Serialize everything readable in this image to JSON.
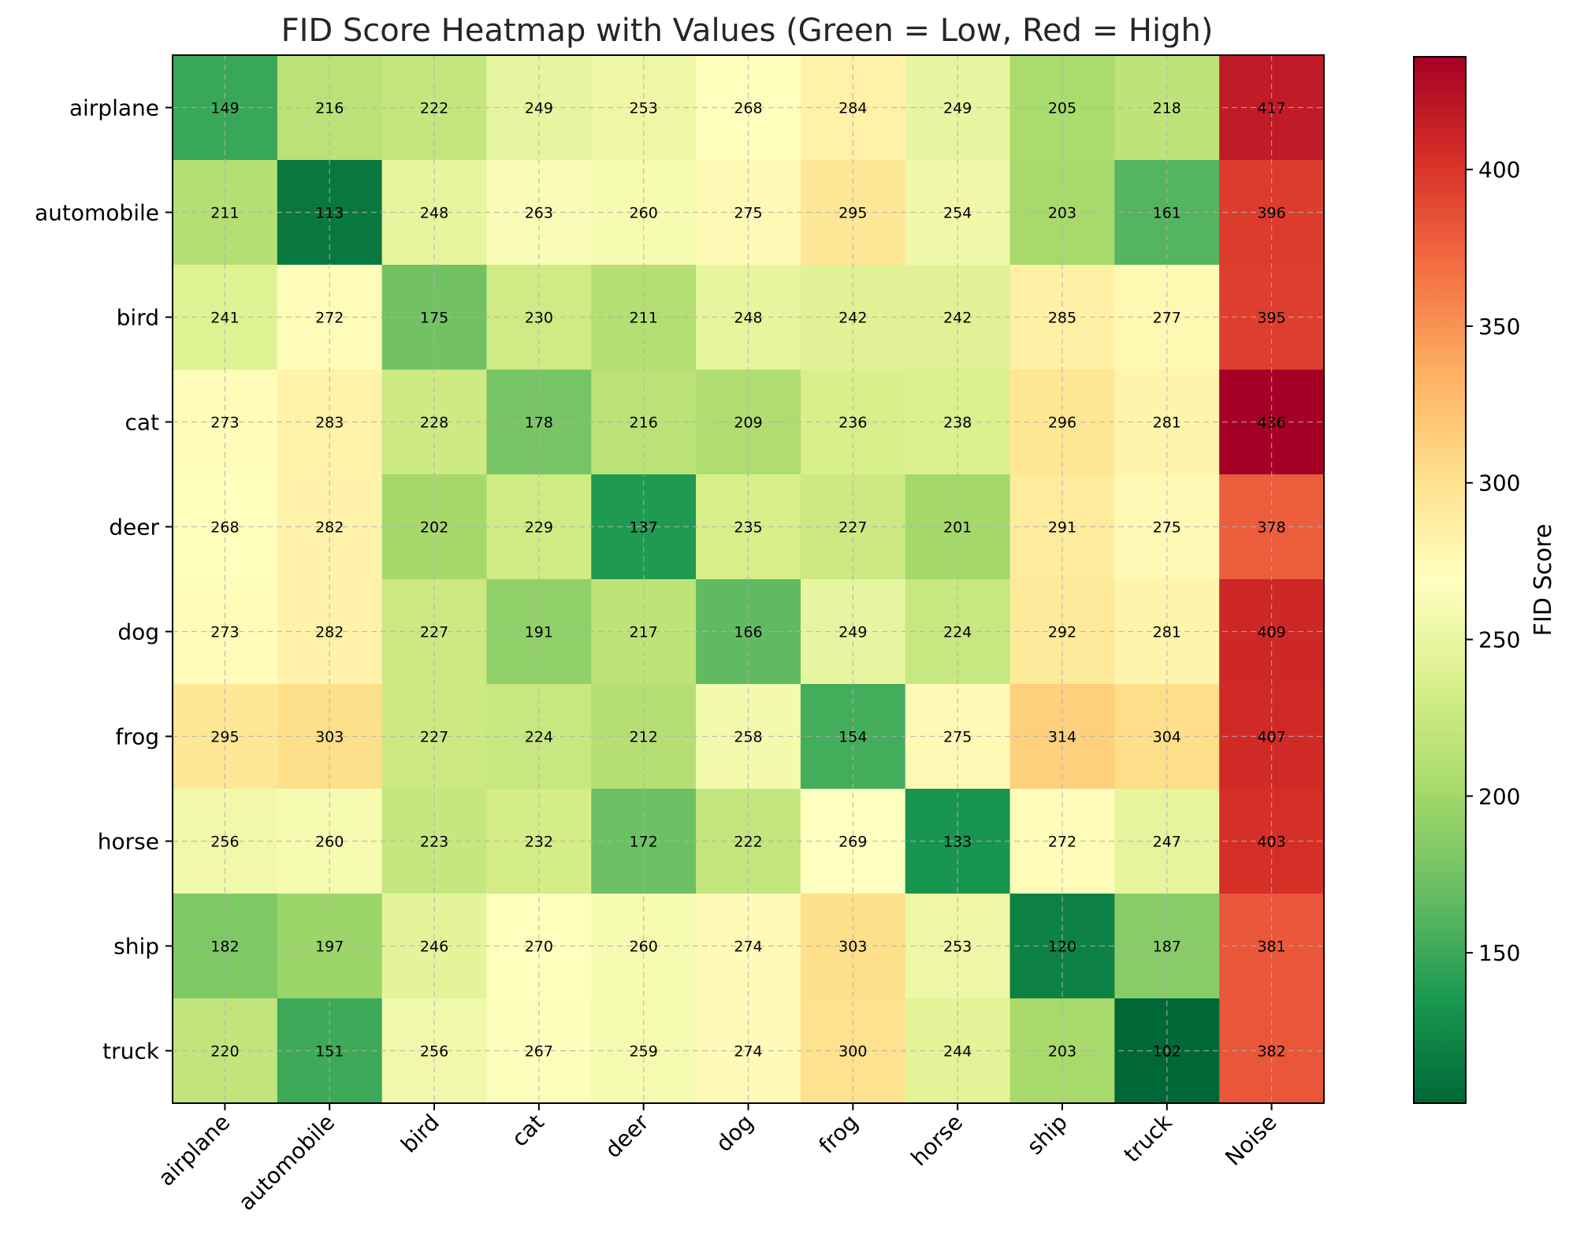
{
  "chart_data": {
    "type": "heatmap",
    "title": "FID Score Heatmap with Values (Green = Low, Red = High)",
    "rows": [
      "airplane",
      "automobile",
      "bird",
      "cat",
      "deer",
      "dog",
      "frog",
      "horse",
      "ship",
      "truck"
    ],
    "columns": [
      "airplane",
      "automobile",
      "bird",
      "cat",
      "deer",
      "dog",
      "frog",
      "horse",
      "ship",
      "truck",
      "Noise"
    ],
    "values": [
      [
        149,
        216,
        222,
        249,
        253,
        268,
        284,
        249,
        205,
        218,
        417
      ],
      [
        211,
        113,
        248,
        263,
        260,
        275,
        295,
        254,
        203,
        161,
        396
      ],
      [
        241,
        272,
        175,
        230,
        211,
        248,
        242,
        242,
        285,
        277,
        395
      ],
      [
        273,
        283,
        228,
        178,
        216,
        209,
        236,
        238,
        296,
        281,
        436
      ],
      [
        268,
        282,
        202,
        229,
        137,
        235,
        227,
        201,
        291,
        275,
        378
      ],
      [
        273,
        282,
        227,
        191,
        217,
        166,
        249,
        224,
        292,
        281,
        409
      ],
      [
        295,
        303,
        227,
        224,
        212,
        258,
        154,
        275,
        314,
        304,
        407
      ],
      [
        256,
        260,
        223,
        232,
        172,
        222,
        269,
        133,
        272,
        247,
        403
      ],
      [
        182,
        197,
        246,
        270,
        260,
        274,
        303,
        253,
        120,
        187,
        381
      ],
      [
        220,
        151,
        256,
        267,
        259,
        274,
        300,
        244,
        203,
        102,
        382
      ]
    ],
    "colormap": "RdYlGn_r",
    "color_range": [
      102,
      436
    ],
    "colorbar": {
      "label": "FID Score",
      "ticks": [
        "150",
        "200",
        "250",
        "300",
        "350",
        "400"
      ]
    },
    "grid": true
  }
}
